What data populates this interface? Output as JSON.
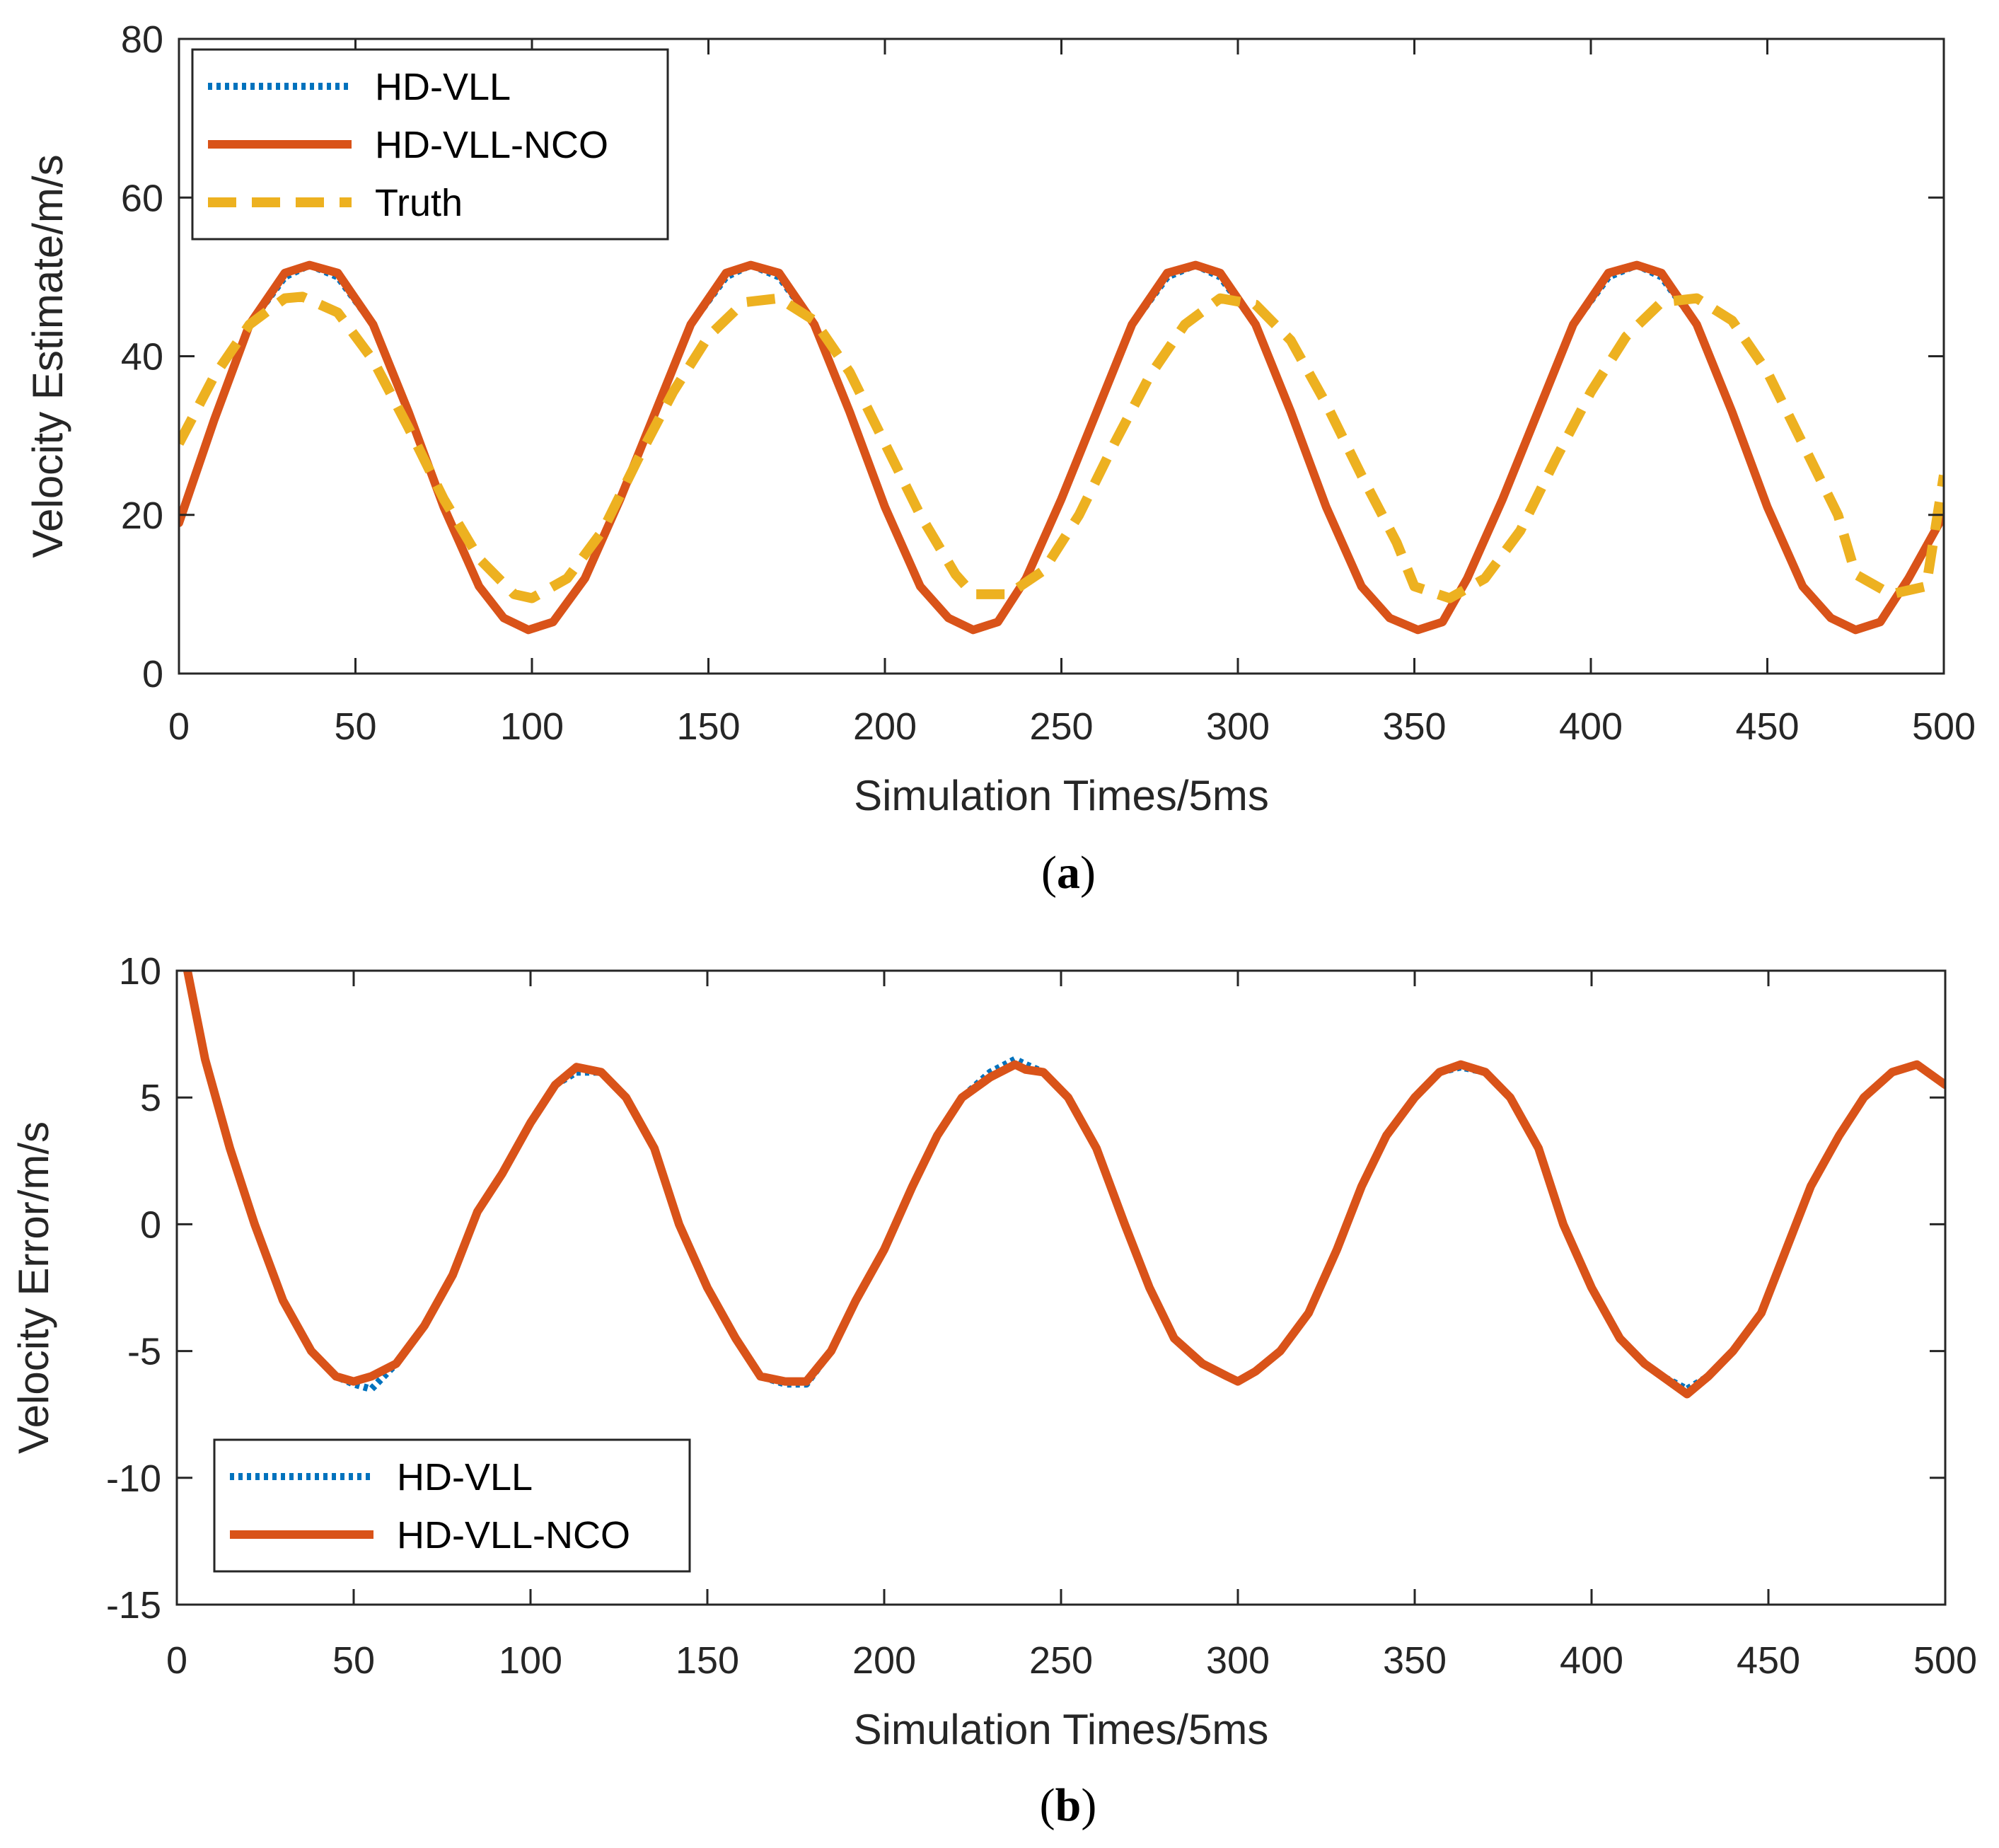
{
  "chart_data": [
    {
      "type": "line",
      "panel": "a",
      "caption_open": "(",
      "caption_letter": "a",
      "caption_close": ")",
      "xlabel": "Simulation Times/5ms",
      "ylabel": "Velocity Estimate/m/s",
      "xlim": [
        0,
        500
      ],
      "ylim": [
        0,
        80
      ],
      "xticks": [
        0,
        50,
        100,
        150,
        200,
        250,
        300,
        350,
        400,
        450,
        500
      ],
      "yticks": [
        0,
        20,
        40,
        60,
        80
      ],
      "legend_position": "top-left",
      "series": [
        {
          "name": "HD-VLL",
          "style": "dotted",
          "color": "#0072BD",
          "x": [
            0,
            10,
            20,
            30,
            37,
            45,
            55,
            65,
            75,
            85,
            92,
            99,
            106,
            115,
            125,
            135,
            145,
            155,
            162,
            170,
            180,
            190,
            200,
            210,
            218,
            225,
            232,
            240,
            250,
            260,
            270,
            280,
            288,
            295,
            305,
            315,
            325,
            335,
            343,
            351,
            358,
            365,
            375,
            385,
            395,
            405,
            413,
            420,
            430,
            440,
            450,
            460,
            468,
            475,
            482,
            490,
            500
          ],
          "y": [
            19,
            32,
            44,
            50,
            51.5,
            50,
            44,
            33,
            21,
            11,
            7,
            5.5,
            6.5,
            12,
            22,
            33,
            44,
            50,
            51.5,
            50,
            44,
            33,
            21,
            11,
            7,
            5.5,
            6.5,
            12,
            22,
            33,
            44,
            50,
            51.5,
            50,
            44,
            33,
            21,
            11,
            7,
            5.5,
            6.5,
            12,
            22,
            33,
            44,
            50,
            51.5,
            50,
            44,
            33,
            21,
            11,
            7,
            5.5,
            6.5,
            12,
            20
          ]
        },
        {
          "name": "HD-VLL-NCO",
          "style": "solid",
          "color": "#D95319",
          "x": [
            0,
            10,
            20,
            30,
            37,
            45,
            55,
            65,
            75,
            85,
            92,
            99,
            106,
            115,
            125,
            135,
            145,
            155,
            162,
            170,
            180,
            190,
            200,
            210,
            218,
            225,
            232,
            240,
            250,
            260,
            270,
            280,
            288,
            295,
            305,
            315,
            325,
            335,
            343,
            351,
            358,
            365,
            375,
            385,
            395,
            405,
            413,
            420,
            430,
            440,
            450,
            460,
            468,
            475,
            482,
            490,
            500
          ],
          "y": [
            19,
            32,
            44,
            50.5,
            51.5,
            50.5,
            44,
            33,
            21,
            11,
            7,
            5.5,
            6.5,
            12,
            22,
            33,
            44,
            50.5,
            51.5,
            50.5,
            44,
            33,
            21,
            11,
            7,
            5.5,
            6.5,
            12,
            22,
            33,
            44,
            50.5,
            51.5,
            50.5,
            44,
            33,
            21,
            11,
            7,
            5.5,
            6.5,
            12,
            22,
            33,
            44,
            50.5,
            51.5,
            50.5,
            44,
            33,
            21,
            11,
            7,
            5.5,
            6.5,
            12,
            20
          ]
        },
        {
          "name": "Truth",
          "style": "dashed",
          "color": "#EDB120",
          "x": [
            0,
            10,
            20,
            30,
            35,
            45,
            55,
            65,
            75,
            85,
            95,
            100,
            110,
            120,
            130,
            140,
            150,
            160,
            170,
            180,
            190,
            200,
            210,
            220,
            225,
            235,
            245,
            255,
            265,
            275,
            285,
            295,
            305,
            315,
            325,
            335,
            345,
            350,
            360,
            370,
            380,
            390,
            400,
            410,
            420,
            430,
            440,
            450,
            460,
            470,
            475,
            485,
            495,
            500
          ],
          "y": [
            29,
            37.5,
            44,
            47.3,
            47.5,
            45.5,
            39.5,
            31,
            22,
            14.5,
            10,
            9.5,
            12,
            18,
            27,
            35.5,
            42.5,
            46.8,
            47.3,
            44.5,
            38,
            29,
            20,
            12.5,
            10,
            10,
            13,
            20,
            29,
            37.5,
            44,
            47.3,
            46.5,
            42,
            34,
            25,
            16.5,
            11,
            9.5,
            12,
            18,
            27,
            35.5,
            42.5,
            46.8,
            47.3,
            44.5,
            38,
            29,
            20,
            12.5,
            10,
            11,
            25
          ]
        }
      ]
    },
    {
      "type": "line",
      "panel": "b",
      "caption_open": "(",
      "caption_letter": "b",
      "caption_close": ")",
      "xlabel": "Simulation Times/5ms",
      "ylabel": "Velocity Error/m/s",
      "xlim": [
        0,
        500
      ],
      "ylim": [
        -15,
        10
      ],
      "xticks": [
        0,
        50,
        100,
        150,
        200,
        250,
        300,
        350,
        400,
        450,
        500
      ],
      "yticks": [
        -15,
        -10,
        -5,
        0,
        5,
        10
      ],
      "legend_position": "bottom-left",
      "series": [
        {
          "name": "HD-VLL",
          "style": "dotted",
          "color": "#0072BD",
          "x": [
            3,
            8,
            15,
            22,
            30,
            38,
            45,
            50,
            55,
            62,
            70,
            78,
            85,
            92,
            100,
            107,
            113,
            120,
            127,
            135,
            142,
            150,
            158,
            165,
            172,
            178,
            185,
            192,
            200,
            208,
            215,
            222,
            230,
            237,
            240,
            245,
            252,
            260,
            268,
            275,
            282,
            290,
            297,
            300,
            305,
            312,
            320,
            328,
            335,
            342,
            350,
            357,
            363,
            370,
            377,
            385,
            392,
            400,
            408,
            415,
            420,
            427,
            433,
            440,
            448,
            455,
            462,
            470,
            477,
            485,
            492,
            500
          ],
          "y": [
            10,
            6.5,
            3,
            0,
            -3,
            -5,
            -6,
            -6.3,
            -6.5,
            -5.5,
            -4,
            -2,
            0.5,
            2,
            4,
            5.5,
            6,
            6,
            5,
            3,
            0,
            -2.5,
            -4.5,
            -6,
            -6.3,
            -6.3,
            -5,
            -3,
            -1,
            1.5,
            3.5,
            5,
            6,
            6.5,
            6.3,
            6,
            5,
            3,
            0,
            -2.5,
            -4.5,
            -5.5,
            -6,
            -6.2,
            -5.8,
            -5,
            -3.5,
            -1,
            1.5,
            3.5,
            5,
            6,
            6.2,
            6,
            5,
            3,
            0,
            -2.5,
            -4.5,
            -5.5,
            -6,
            -6.5,
            -6,
            -5,
            -3.5,
            -1,
            1.5,
            3.5,
            5,
            6,
            6.3,
            5.5
          ]
        },
        {
          "name": "HD-VLL-NCO",
          "style": "solid",
          "color": "#D95319",
          "x": [
            3,
            8,
            15,
            22,
            30,
            38,
            45,
            50,
            55,
            62,
            70,
            78,
            85,
            92,
            100,
            107,
            113,
            120,
            127,
            135,
            142,
            150,
            158,
            165,
            172,
            178,
            185,
            192,
            200,
            208,
            215,
            222,
            230,
            237,
            240,
            245,
            252,
            260,
            268,
            275,
            282,
            290,
            297,
            300,
            305,
            312,
            320,
            328,
            335,
            342,
            350,
            357,
            363,
            370,
            377,
            385,
            392,
            400,
            408,
            415,
            420,
            427,
            433,
            440,
            448,
            455,
            462,
            470,
            477,
            485,
            492,
            500
          ],
          "y": [
            10,
            6.5,
            3,
            0,
            -3,
            -5,
            -6,
            -6.2,
            -6,
            -5.5,
            -4,
            -2,
            0.5,
            2,
            4,
            5.5,
            6.2,
            6,
            5,
            3,
            0,
            -2.5,
            -4.5,
            -6,
            -6.2,
            -6.2,
            -5,
            -3,
            -1,
            1.5,
            3.5,
            5,
            5.8,
            6.3,
            6.1,
            6,
            5,
            3,
            0,
            -2.5,
            -4.5,
            -5.5,
            -6,
            -6.2,
            -5.8,
            -5,
            -3.5,
            -1,
            1.5,
            3.5,
            5,
            6,
            6.3,
            6,
            5,
            3,
            0,
            -2.5,
            -4.5,
            -5.5,
            -6,
            -6.7,
            -6,
            -5,
            -3.5,
            -1,
            1.5,
            3.5,
            5,
            6,
            6.3,
            5.5
          ]
        }
      ]
    }
  ]
}
